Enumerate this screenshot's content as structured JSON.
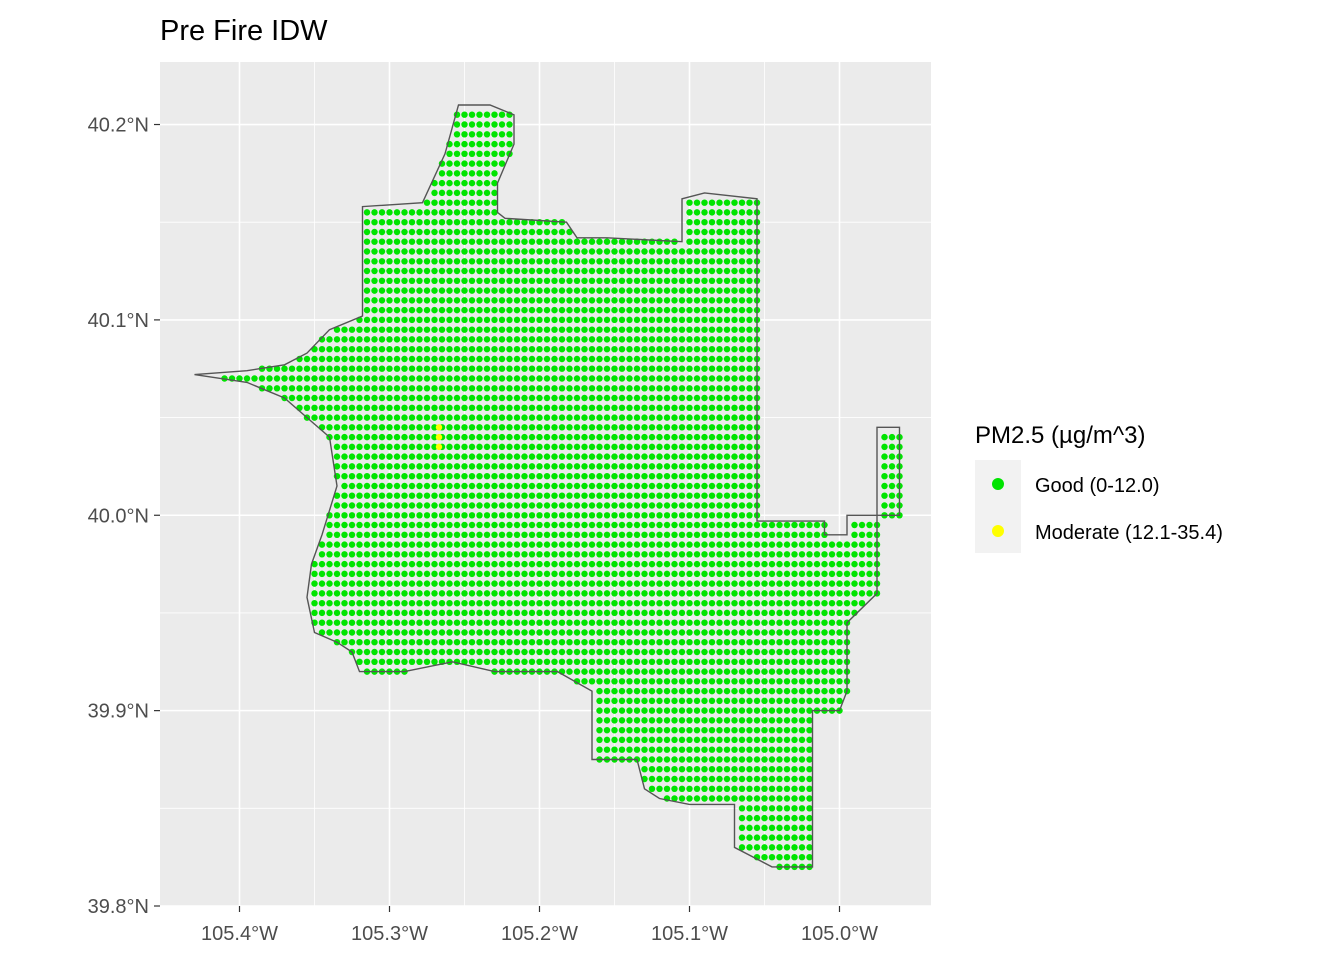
{
  "chart_data": {
    "type": "scatter",
    "title": "Pre Fire IDW",
    "xlabel": "",
    "ylabel": "",
    "xlim": [
      -105.453,
      -104.939
    ],
    "ylim": [
      39.8,
      40.232
    ],
    "x_ticks": [
      -105.4,
      -105.3,
      -105.2,
      -105.1,
      -105.0
    ],
    "x_tick_labels": [
      "105.4°W",
      "105.3°W",
      "105.2°W",
      "105.1°W",
      "105.0°W"
    ],
    "y_ticks": [
      39.8,
      39.9,
      40.0,
      40.1,
      40.2
    ],
    "y_tick_labels": [
      "39.8°N",
      "39.9°N",
      "40.0°N",
      "40.1°N",
      "40.2°N"
    ],
    "grid": true,
    "legend": {
      "title": "PM2.5 (µg/m^3)",
      "position": "right",
      "entries": [
        {
          "label": "Good (0-12.0)",
          "color": "#00e400"
        },
        {
          "label": "Moderate (12.1-35.4)",
          "color": "#ffff00"
        }
      ]
    },
    "grid_spacing_deg": 0.005,
    "series": [
      {
        "name": "Good (0-12.0)",
        "color": "#00e400",
        "boundary_polygon": [
          [
            -105.43,
            40.072
          ],
          [
            -105.395,
            40.074
          ],
          [
            -105.37,
            40.077
          ],
          [
            -105.355,
            40.083
          ],
          [
            -105.34,
            40.095
          ],
          [
            -105.318,
            40.102
          ],
          [
            -105.318,
            40.158
          ],
          [
            -105.278,
            40.16
          ],
          [
            -105.263,
            40.185
          ],
          [
            -105.254,
            40.21
          ],
          [
            -105.233,
            40.21
          ],
          [
            -105.217,
            40.205
          ],
          [
            -105.217,
            40.19
          ],
          [
            -105.228,
            40.17
          ],
          [
            -105.228,
            40.155
          ],
          [
            -105.223,
            40.152
          ],
          [
            -105.223,
            40.152
          ],
          [
            -105.182,
            40.15
          ],
          [
            -105.175,
            40.142
          ],
          [
            -105.155,
            40.142
          ],
          [
            -105.105,
            40.14
          ],
          [
            -105.105,
            40.162
          ],
          [
            -105.09,
            40.165
          ],
          [
            -105.055,
            40.162
          ],
          [
            -105.055,
            39.997
          ],
          [
            -105.01,
            39.997
          ],
          [
            -105.01,
            39.99
          ],
          [
            -104.995,
            39.99
          ],
          [
            -104.995,
            40.0
          ],
          [
            -104.96,
            40.0
          ],
          [
            -104.96,
            40.045
          ],
          [
            -104.975,
            40.045
          ],
          [
            -104.975,
            39.96
          ],
          [
            -104.995,
            39.945
          ],
          [
            -104.995,
            39.91
          ],
          [
            -105.0,
            39.9
          ],
          [
            -105.018,
            39.9
          ],
          [
            -105.018,
            39.858
          ],
          [
            -105.018,
            39.82
          ],
          [
            -105.045,
            39.82
          ],
          [
            -105.07,
            39.83
          ],
          [
            -105.07,
            39.852
          ],
          [
            -105.1,
            39.852
          ],
          [
            -105.12,
            39.855
          ],
          [
            -105.13,
            39.86
          ],
          [
            -105.135,
            39.875
          ],
          [
            -105.165,
            39.875
          ],
          [
            -105.165,
            39.91
          ],
          [
            -105.188,
            39.92
          ],
          [
            -105.23,
            39.92
          ],
          [
            -105.258,
            39.925
          ],
          [
            -105.29,
            39.92
          ],
          [
            -105.32,
            39.92
          ],
          [
            -105.325,
            39.93
          ],
          [
            -105.335,
            39.935
          ],
          [
            -105.35,
            39.94
          ],
          [
            -105.355,
            39.958
          ],
          [
            -105.352,
            39.975
          ],
          [
            -105.345,
            39.99
          ],
          [
            -105.335,
            40.015
          ],
          [
            -105.34,
            40.04
          ],
          [
            -105.355,
            40.05
          ],
          [
            -105.37,
            40.06
          ],
          [
            -105.395,
            40.068
          ]
        ]
      },
      {
        "name": "Moderate (12.1-35.4)",
        "color": "#ffff00",
        "points": [
          [
            -105.267,
            40.045
          ],
          [
            -105.267,
            40.04
          ],
          [
            -105.267,
            40.035
          ]
        ]
      }
    ]
  }
}
